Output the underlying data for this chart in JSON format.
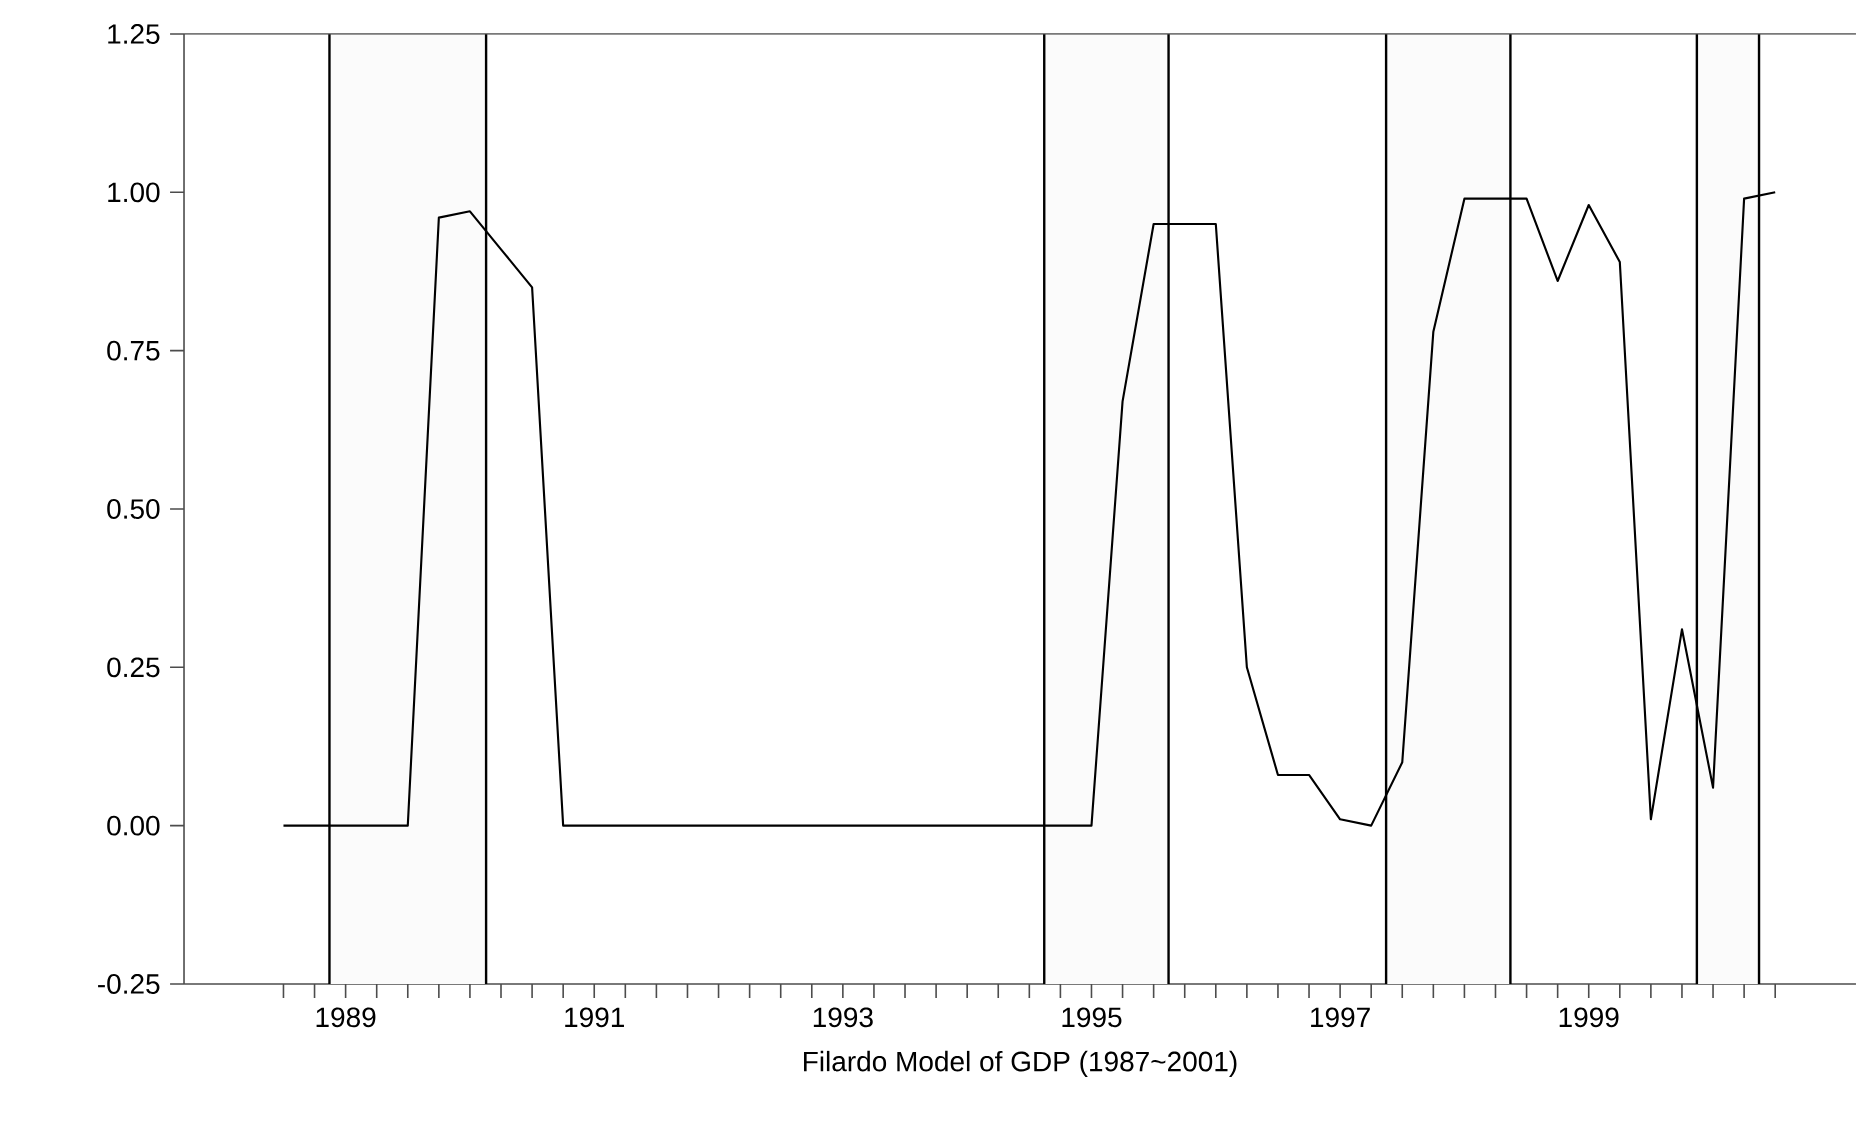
{
  "chart_data": {
    "type": "line",
    "xlabel": "Filardo Model of GDP (1987~2001)",
    "x": [
      1989.0,
      1989.25,
      1989.5,
      1989.75,
      1990.0,
      1990.25,
      1990.5,
      1990.75,
      1991.0,
      1991.25,
      1991.5,
      1991.75,
      1992.0,
      1992.25,
      1992.5,
      1992.75,
      1993.0,
      1993.25,
      1993.5,
      1993.75,
      1994.0,
      1994.25,
      1994.5,
      1994.75,
      1995.0,
      1995.25,
      1995.5,
      1995.75,
      1996.0,
      1996.25,
      1996.5,
      1996.75,
      1997.0,
      1997.25,
      1997.5,
      1997.75,
      1998.0,
      1998.25,
      1998.5,
      1998.75,
      1999.0,
      1999.25,
      1999.5,
      1999.75,
      2000.0,
      2000.25,
      2000.5,
      2000.75,
      2001.0
    ],
    "series": [
      {
        "color": "#000000",
        "values": [
          0,
          0,
          0,
          0,
          0,
          0.96,
          0.97,
          0.91,
          0.85,
          0.0,
          0,
          0,
          0,
          0,
          0,
          0,
          0,
          0,
          0,
          0,
          0,
          0,
          0,
          0,
          0,
          0,
          0.0,
          0.67,
          0.95,
          0.95,
          0.95,
          0.25,
          0.08,
          0.08,
          0.01,
          0.0,
          0.1,
          0.78,
          0.99,
          0.99,
          0.99,
          0.86,
          0.98,
          0.89,
          0.01,
          0.31,
          0.06,
          0.99,
          1.0
        ]
      }
    ],
    "xlim": [
      1988.2,
      2001.65
    ],
    "ylim": [
      -0.25,
      1.25
    ],
    "yticks": [
      {
        "value": -0.25,
        "label": "-0.25"
      },
      {
        "value": 0,
        "label": "0.00"
      },
      {
        "value": 0.25,
        "label": "0.25"
      },
      {
        "value": 0.5,
        "label": "0.50"
      },
      {
        "value": 0.75,
        "label": "0.75"
      },
      {
        "value": 1,
        "label": "1.00"
      },
      {
        "value": 1.25,
        "label": "1.25"
      }
    ],
    "xticks": [
      {
        "value": 1989.0,
        "label": null
      },
      {
        "value": 1989.25,
        "label": null
      },
      {
        "value": 1989.5,
        "label": "1989"
      },
      {
        "value": 1989.75,
        "label": null
      },
      {
        "value": 1990.0,
        "label": null
      },
      {
        "value": 1990.25,
        "label": null
      },
      {
        "value": 1990.5,
        "label": null
      },
      {
        "value": 1990.75,
        "label": null
      },
      {
        "value": 1991.0,
        "label": null
      },
      {
        "value": 1991.25,
        "label": null
      },
      {
        "value": 1991.5,
        "label": "1991"
      },
      {
        "value": 1991.75,
        "label": null
      },
      {
        "value": 1992.0,
        "label": null
      },
      {
        "value": 1992.25,
        "label": null
      },
      {
        "value": 1992.5,
        "label": null
      },
      {
        "value": 1992.75,
        "label": null
      },
      {
        "value": 1993.0,
        "label": null
      },
      {
        "value": 1993.25,
        "label": null
      },
      {
        "value": 1993.5,
        "label": "1993"
      },
      {
        "value": 1993.75,
        "label": null
      },
      {
        "value": 1994.0,
        "label": null
      },
      {
        "value": 1994.25,
        "label": null
      },
      {
        "value": 1994.5,
        "label": null
      },
      {
        "value": 1994.75,
        "label": null
      },
      {
        "value": 1995.0,
        "label": null
      },
      {
        "value": 1995.25,
        "label": null
      },
      {
        "value": 1995.5,
        "label": "1995"
      },
      {
        "value": 1995.75,
        "label": null
      },
      {
        "value": 1996.0,
        "label": null
      },
      {
        "value": 1996.25,
        "label": null
      },
      {
        "value": 1996.5,
        "label": null
      },
      {
        "value": 1996.75,
        "label": null
      },
      {
        "value": 1997.0,
        "label": null
      },
      {
        "value": 1997.25,
        "label": null
      },
      {
        "value": 1997.5,
        "label": "1997"
      },
      {
        "value": 1997.75,
        "label": null
      },
      {
        "value": 1998.0,
        "label": null
      },
      {
        "value": 1998.25,
        "label": null
      },
      {
        "value": 1998.5,
        "label": null
      },
      {
        "value": 1998.75,
        "label": null
      },
      {
        "value": 1999.0,
        "label": null
      },
      {
        "value": 1999.25,
        "label": null
      },
      {
        "value": 1999.5,
        "label": "1999"
      },
      {
        "value": 1999.75,
        "label": null
      },
      {
        "value": 2000.0,
        "label": null
      },
      {
        "value": 2000.25,
        "label": null
      },
      {
        "value": 2000.5,
        "label": null
      },
      {
        "value": 2000.75,
        "label": null
      },
      {
        "value": 2001.0,
        "label": null
      }
    ],
    "bands": [
      {
        "axis": "x",
        "from": 1989.37,
        "to": 1990.63,
        "color": "#fbfbfb"
      },
      {
        "axis": "x",
        "from": 1995.12,
        "to": 1996.12,
        "color": "#fbfbfb"
      },
      {
        "axis": "x",
        "from": 1997.87,
        "to": 1998.87,
        "color": "#fbfbfb"
      },
      {
        "axis": "x",
        "from": 2000.37,
        "to": 2000.87,
        "color": "#fbfbfb"
      }
    ],
    "grid": false,
    "marker": "none",
    "line_style": "solid"
  }
}
